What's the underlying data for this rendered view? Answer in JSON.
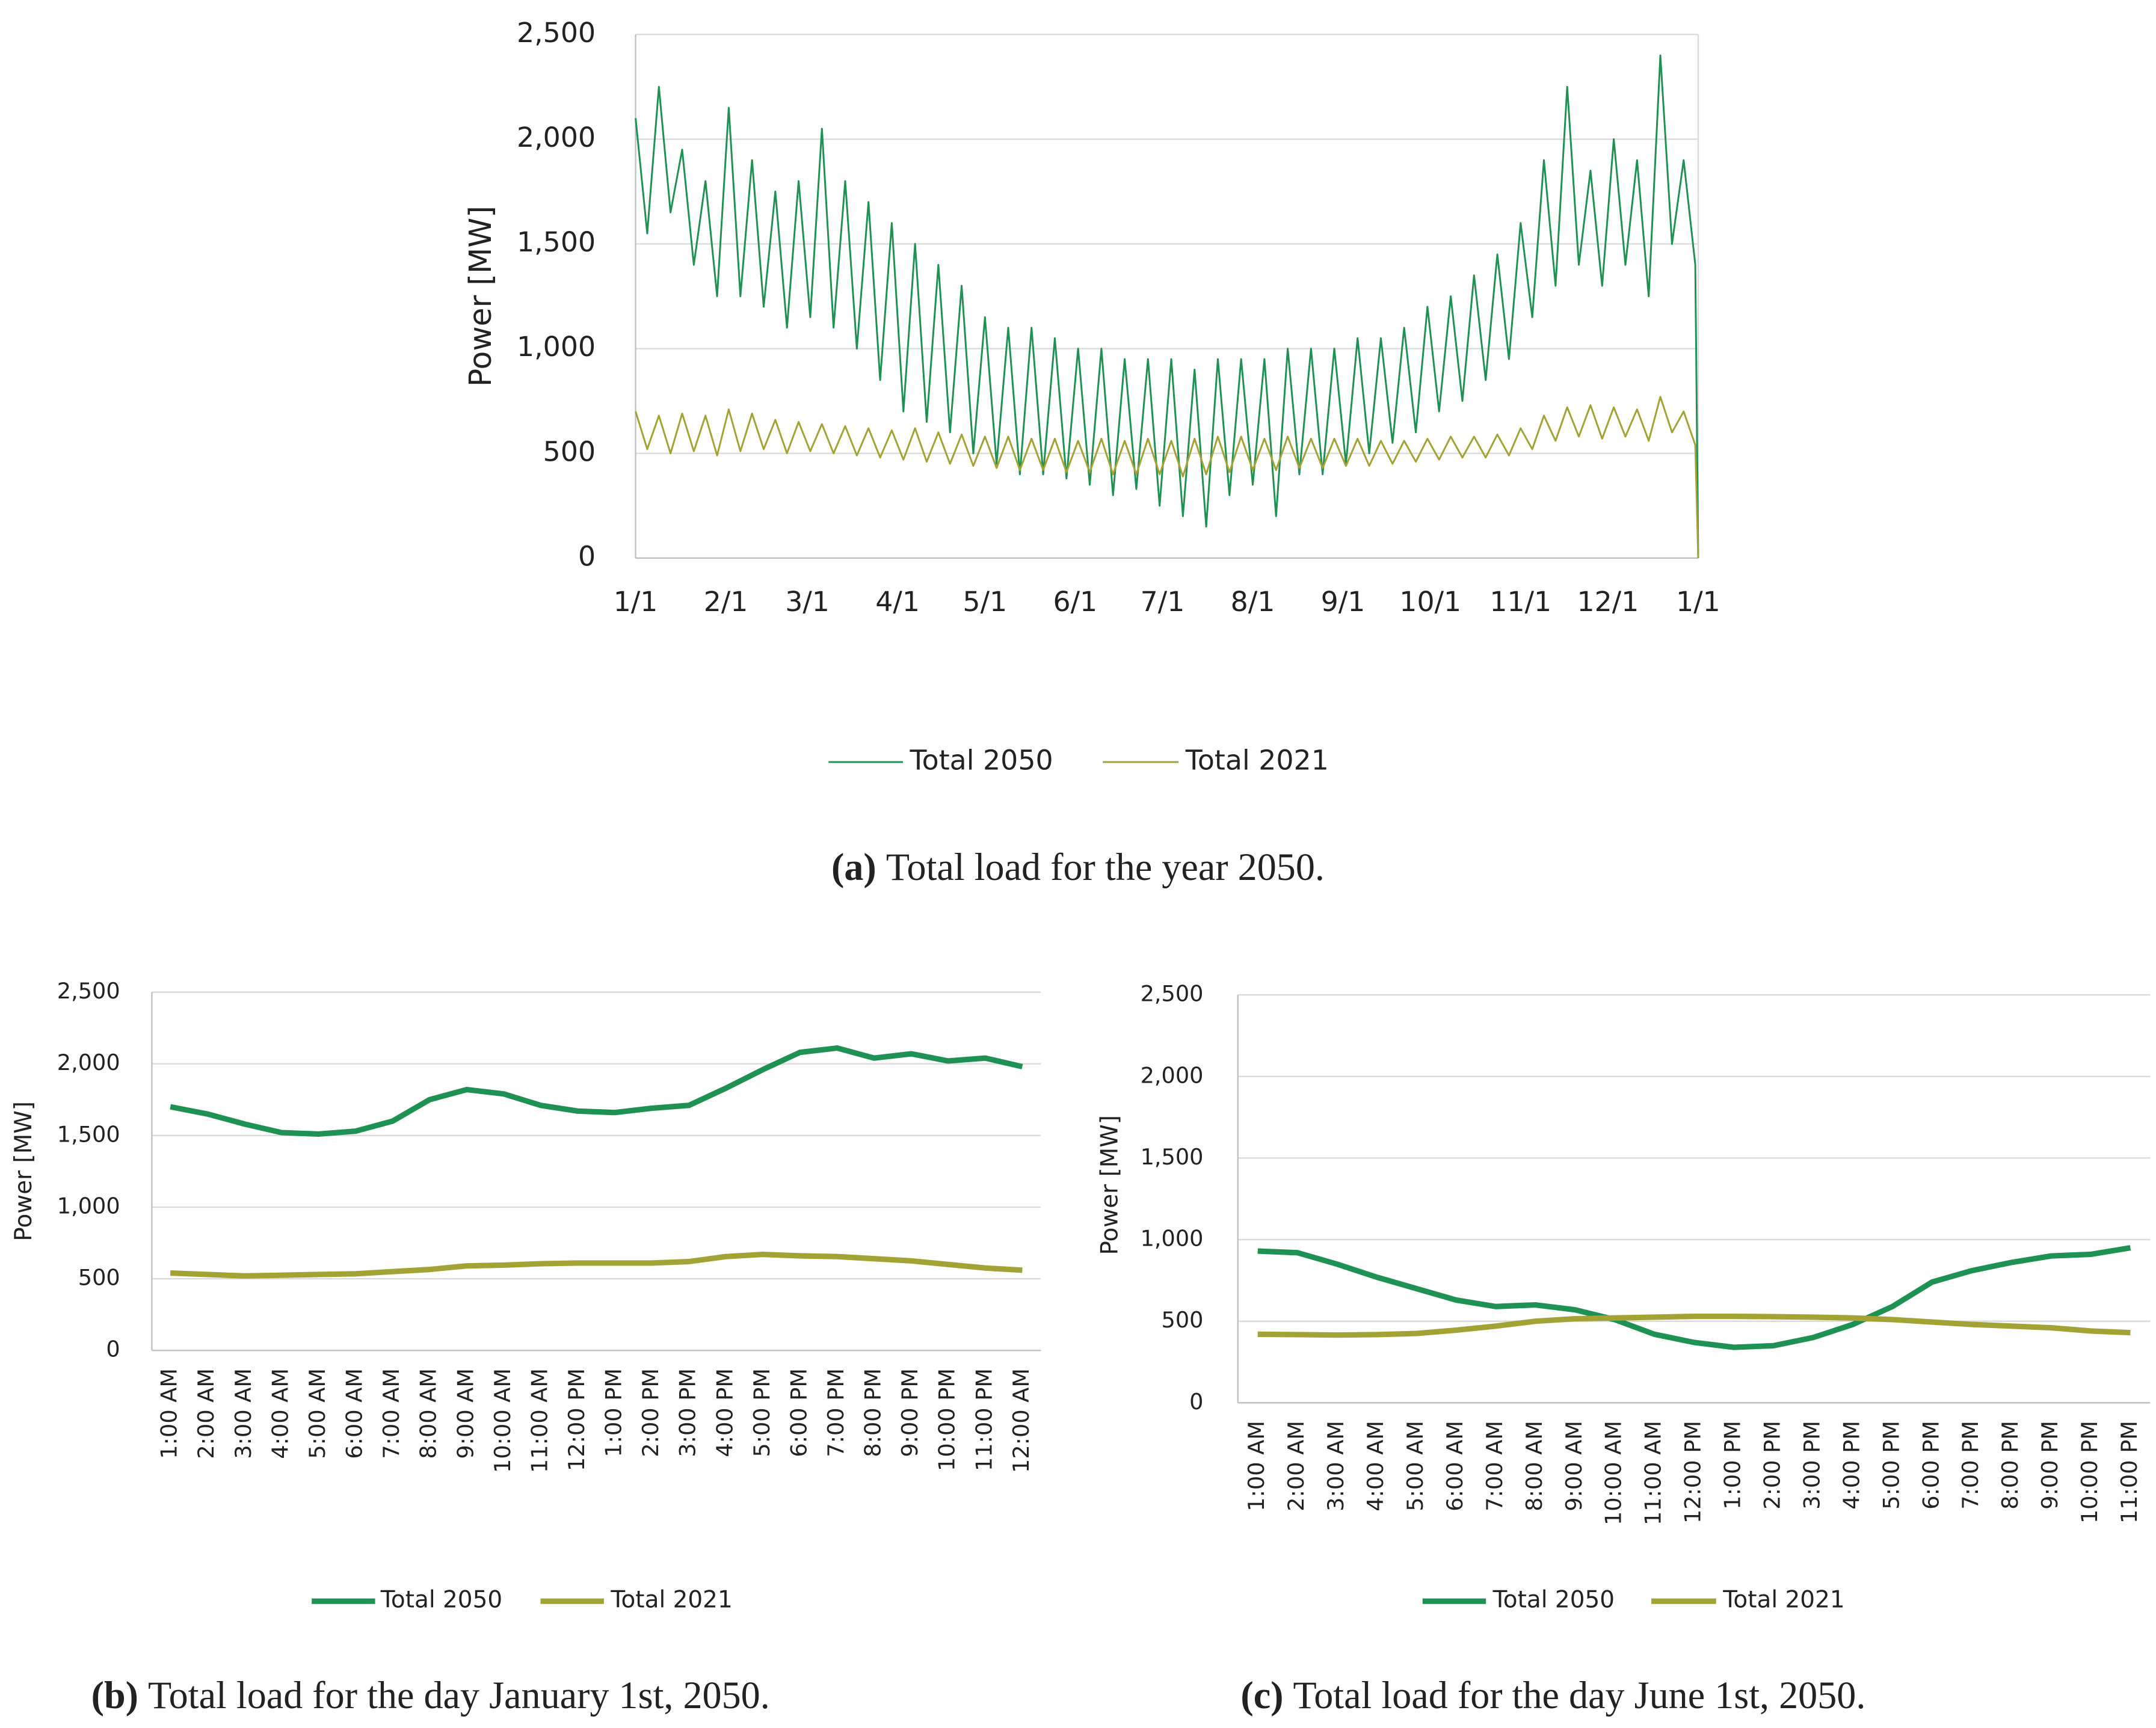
{
  "chart_data": [
    {
      "type": "line",
      "caption_label": "(a)",
      "caption": "Total load for the year 2050.",
      "y_label": "Power [MW]",
      "x": [
        0,
        4,
        8,
        12,
        16,
        20,
        24,
        28,
        32,
        36,
        40,
        44,
        48,
        52,
        56,
        60,
        64,
        68,
        72,
        76,
        80,
        84,
        88,
        92,
        96,
        100,
        104,
        108,
        112,
        116,
        120,
        124,
        128,
        132,
        136,
        140,
        144,
        148,
        152,
        156,
        160,
        164,
        168,
        172,
        176,
        180,
        184,
        188,
        192,
        196,
        200,
        204,
        208,
        212,
        216,
        220,
        224,
        228,
        232,
        236,
        240,
        244,
        248,
        252,
        256,
        260,
        264,
        268,
        272,
        276,
        280,
        284,
        288,
        292,
        296,
        300,
        304,
        308,
        312,
        316,
        320,
        324,
        328,
        332,
        336,
        340,
        344,
        348,
        352,
        356,
        360,
        364,
        365
      ],
      "series": [
        {
          "name": "Total 2050",
          "color": "#1f9153",
          "values": [
            2100,
            1550,
            2250,
            1650,
            1950,
            1400,
            1800,
            1250,
            2150,
            1250,
            1900,
            1200,
            1750,
            1100,
            1800,
            1150,
            2050,
            1100,
            1800,
            1000,
            1700,
            850,
            1600,
            700,
            1500,
            650,
            1400,
            600,
            1300,
            500,
            1150,
            450,
            1100,
            400,
            1100,
            400,
            1050,
            380,
            1000,
            350,
            1000,
            300,
            950,
            330,
            950,
            250,
            950,
            200,
            900,
            150,
            950,
            300,
            950,
            350,
            950,
            200,
            1000,
            400,
            1000,
            400,
            1000,
            450,
            1050,
            500,
            1050,
            550,
            1100,
            600,
            1200,
            700,
            1250,
            750,
            1350,
            850,
            1450,
            950,
            1600,
            1150,
            1900,
            1300,
            2250,
            1400,
            1850,
            1300,
            2000,
            1400,
            1900,
            1250,
            2400,
            1500,
            1900,
            1400,
            0
          ]
        },
        {
          "name": "Total 2021",
          "color": "#a3a335",
          "values": [
            700,
            520,
            680,
            500,
            690,
            510,
            680,
            490,
            710,
            510,
            690,
            520,
            660,
            500,
            650,
            510,
            640,
            500,
            630,
            490,
            620,
            480,
            610,
            470,
            620,
            460,
            600,
            450,
            590,
            440,
            580,
            430,
            580,
            420,
            570,
            420,
            570,
            410,
            560,
            410,
            570,
            400,
            560,
            400,
            570,
            400,
            560,
            390,
            570,
            400,
            580,
            410,
            580,
            420,
            570,
            420,
            580,
            430,
            570,
            430,
            570,
            440,
            570,
            440,
            560,
            450,
            560,
            460,
            570,
            470,
            580,
            480,
            580,
            480,
            590,
            490,
            620,
            520,
            680,
            560,
            720,
            580,
            730,
            570,
            720,
            580,
            710,
            560,
            770,
            600,
            700,
            540,
            0
          ]
        }
      ],
      "xlim": [
        0,
        365
      ],
      "xticks": [
        {
          "value": 0,
          "label": "1/1"
        },
        {
          "value": 31,
          "label": "2/1"
        },
        {
          "value": 59,
          "label": "3/1"
        },
        {
          "value": 90,
          "label": "4/1"
        },
        {
          "value": 120,
          "label": "5/1"
        },
        {
          "value": 151,
          "label": "6/1"
        },
        {
          "value": 181,
          "label": "7/1"
        },
        {
          "value": 212,
          "label": "8/1"
        },
        {
          "value": 243,
          "label": "9/1"
        },
        {
          "value": 273,
          "label": "10/1"
        },
        {
          "value": 304,
          "label": "11/1"
        },
        {
          "value": 334,
          "label": "12/1"
        },
        {
          "value": 365,
          "label": "1/1"
        }
      ],
      "ylim": [
        0,
        2500
      ],
      "yticks": [
        0,
        500,
        {
          "value": 1000,
          "label": "1,000"
        },
        {
          "value": 1500,
          "label": "1,500"
        },
        {
          "value": 2000,
          "label": "2,000"
        },
        {
          "value": 2500,
          "label": "2,500"
        }
      ],
      "grid": true
    },
    {
      "type": "line",
      "caption_label": "(b)",
      "caption": "Total load for the day January 1st, 2050.",
      "y_label": "Power [MW]",
      "categories": [
        "1:00 AM",
        "2:00 AM",
        "3:00 AM",
        "4:00 AM",
        "5:00 AM",
        "6:00 AM",
        "7:00 AM",
        "8:00 AM",
        "9:00 AM",
        "10:00 AM",
        "11:00 AM",
        "12:00 PM",
        "1:00 PM",
        "2:00 PM",
        "3:00 PM",
        "4:00 PM",
        "5:00 PM",
        "6:00 PM",
        "7:00 PM",
        "8:00 PM",
        "9:00 PM",
        "10:00 PM",
        "11:00 PM",
        "12:00 AM"
      ],
      "series": [
        {
          "name": "Total 2050",
          "color": "#1f9153",
          "values": [
            1700,
            1650,
            1580,
            1520,
            1510,
            1530,
            1600,
            1750,
            1820,
            1790,
            1710,
            1670,
            1660,
            1690,
            1710,
            1830,
            1960,
            2080,
            2110,
            2040,
            2070,
            2020,
            2040,
            1980
          ]
        },
        {
          "name": "Total 2021",
          "color": "#a3a335",
          "values": [
            540,
            530,
            520,
            525,
            530,
            535,
            550,
            565,
            590,
            595,
            605,
            610,
            610,
            610,
            620,
            655,
            670,
            660,
            655,
            640,
            625,
            600,
            575,
            560
          ]
        }
      ],
      "ylim": [
        0,
        2500
      ],
      "yticks": [
        0,
        500,
        {
          "value": 1000,
          "label": "1,000"
        },
        {
          "value": 1500,
          "label": "1,500"
        },
        {
          "value": 2000,
          "label": "2,000"
        },
        {
          "value": 2500,
          "label": "2,500"
        }
      ],
      "grid": true
    },
    {
      "type": "line",
      "caption_label": "(c)",
      "caption": "Total load for the day June 1st, 2050.",
      "y_label": "Power [MW]",
      "categories": [
        "1:00 AM",
        "2:00 AM",
        "3:00 AM",
        "4:00 AM",
        "5:00 AM",
        "6:00 AM",
        "7:00 AM",
        "8:00 AM",
        "9:00 AM",
        "10:00 AM",
        "11:00 AM",
        "12:00 PM",
        "1:00 PM",
        "2:00 PM",
        "3:00 PM",
        "4:00 PM",
        "5:00 PM",
        "6:00 PM",
        "7:00 PM",
        "8:00 PM",
        "9:00 PM",
        "10:00 PM",
        "11:00 PM"
      ],
      "series": [
        {
          "name": "Total 2050",
          "color": "#1f9153",
          "values": [
            930,
            920,
            850,
            770,
            700,
            630,
            590,
            600,
            570,
            510,
            420,
            370,
            340,
            350,
            400,
            480,
            590,
            740,
            810,
            860,
            900,
            910,
            950
          ]
        },
        {
          "name": "Total 2021",
          "color": "#a3a335",
          "values": [
            420,
            418,
            415,
            418,
            425,
            445,
            470,
            500,
            515,
            520,
            525,
            530,
            530,
            528,
            525,
            520,
            510,
            495,
            480,
            470,
            460,
            440,
            430
          ]
        }
      ],
      "ylim": [
        0,
        2500
      ],
      "yticks": [
        0,
        500,
        {
          "value": 1000,
          "label": "1,000"
        },
        {
          "value": 1500,
          "label": "1,500"
        },
        {
          "value": 2000,
          "label": "2,000"
        },
        {
          "value": 2500,
          "label": "2,500"
        }
      ],
      "grid": true
    }
  ]
}
